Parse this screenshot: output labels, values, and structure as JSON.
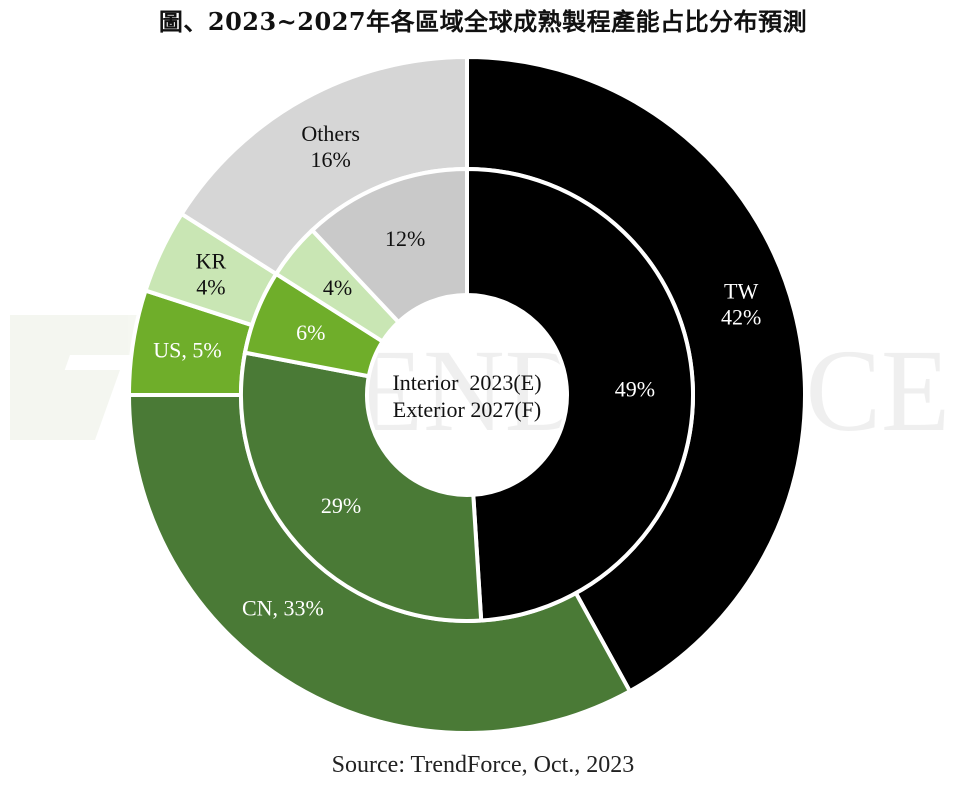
{
  "title": "圖、2023~2027年各區域全球成熟製程產能占比分布預測",
  "source": "Source: TrendForce, Oct., 2023",
  "watermark_text": "TRENDFORCE",
  "center_label": [
    "Interior  2023(E)",
    "Exterior 2027(F)"
  ],
  "chart_data": {
    "type": "donut",
    "rings": [
      {
        "name": "Interior 2023(E)",
        "slices": [
          {
            "label": "TW",
            "value": 49,
            "text": "49%",
            "color": "#000000",
            "text_color": "#ffffff"
          },
          {
            "label": "CN",
            "value": 29,
            "text": "29%",
            "color": "#4a7a36",
            "text_color": "#ffffff"
          },
          {
            "label": "US",
            "value": 6,
            "text": "6%",
            "color": "#6fae2a",
            "text_color": "#ffffff"
          },
          {
            "label": "KR",
            "value": 4,
            "text": "4%",
            "color": "#c9e6b4",
            "text_color": "#111111"
          },
          {
            "label": "Others",
            "value": 12,
            "text": "12%",
            "color": "#c9c9c9",
            "text_color": "#111111"
          }
        ]
      },
      {
        "name": "Exterior 2027(F)",
        "slices": [
          {
            "label": "TW",
            "value": 42,
            "text": [
              "TW",
              "42%"
            ],
            "color": "#000000",
            "text_color": "#ffffff"
          },
          {
            "label": "CN",
            "value": 33,
            "text": [
              "CN, 33%"
            ],
            "color": "#4a7a36",
            "text_color": "#ffffff"
          },
          {
            "label": "US",
            "value": 5,
            "text": [
              "US, 5%"
            ],
            "color": "#6fae2a",
            "text_color": "#ffffff"
          },
          {
            "label": "KR",
            "value": 4,
            "text": [
              "KR",
              "4%"
            ],
            "color": "#c9e6b4",
            "text_color": "#111111"
          },
          {
            "label": "Others",
            "value": 16,
            "text": [
              "Others",
              "16%"
            ],
            "color": "#d6d6d6",
            "text_color": "#111111"
          }
        ]
      }
    ]
  }
}
